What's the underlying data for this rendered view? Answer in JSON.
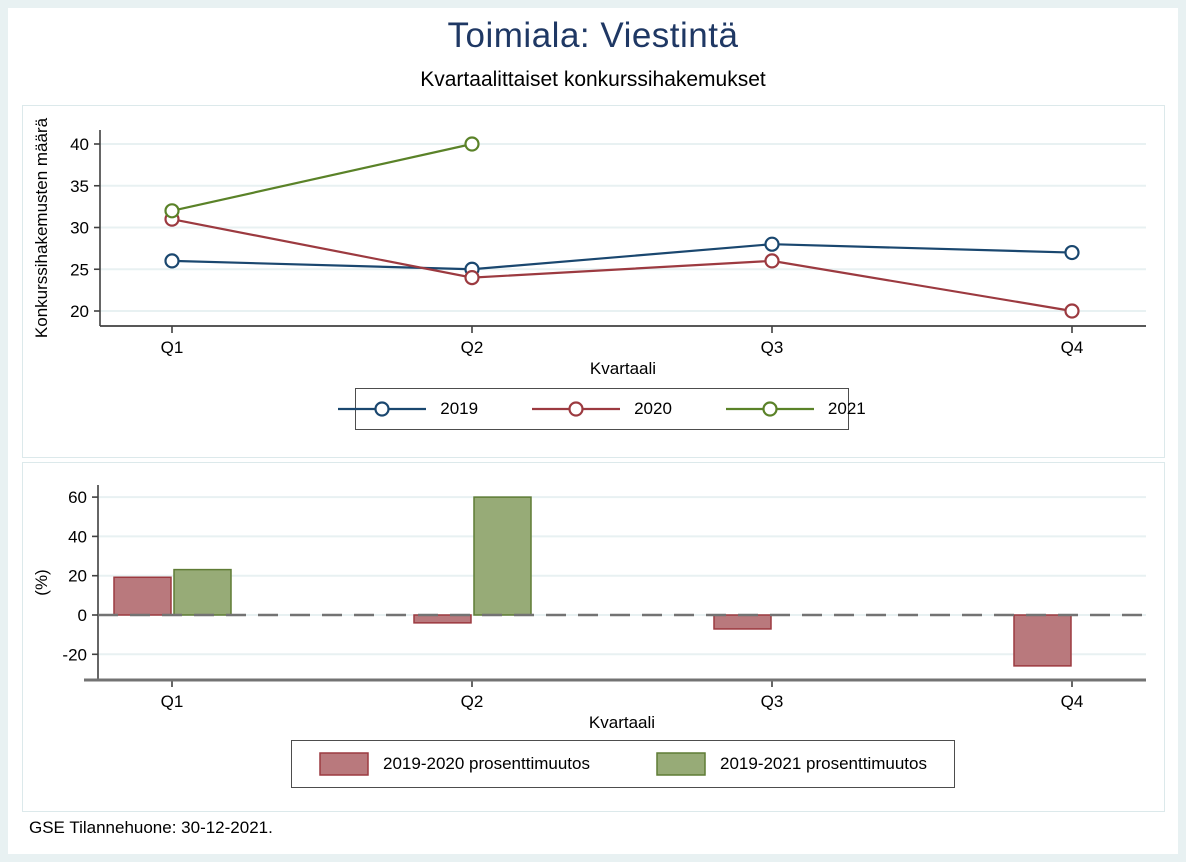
{
  "header": {
    "title": "Toimiala: Viestintä",
    "subtitle": "Kvartaalittaiset konkurssihakemukset"
  },
  "footer": {
    "note": "GSE Tilannehuone: 30-12-2021."
  },
  "colors": {
    "title_navy": "#1f3864",
    "frame_blue": "#e8f1f2",
    "gridline": "#e8f1f2",
    "axis_dark": "#404040",
    "axis_gray": "#737373",
    "series_2019": "#1a476f",
    "series_2020": "#9c3a40",
    "series_2021": "#5a8228",
    "bar_red_fill": "#b9797d",
    "bar_green_fill": "#97ab77"
  },
  "chart_data": [
    {
      "type": "line",
      "title": "Kvartaalittaiset konkurssihakemukset",
      "categories": [
        "Q1",
        "Q2",
        "Q3",
        "Q4"
      ],
      "series": [
        {
          "name": "2019",
          "color": "#1a476f",
          "values": [
            26,
            25,
            28,
            27
          ]
        },
        {
          "name": "2020",
          "color": "#9c3a40",
          "values": [
            31,
            24,
            26,
            20
          ]
        },
        {
          "name": "2021",
          "color": "#5a8228",
          "values": [
            32,
            40,
            null,
            null
          ]
        }
      ],
      "xlabel": "Kvartaali",
      "ylabel": "Konkurssihakemusten määrä",
      "yticks": [
        20,
        25,
        30,
        35,
        40
      ],
      "ylim": [
        17.8,
        42.2
      ],
      "grid": true,
      "legend_position": "bottom",
      "marker": "hollow-circle"
    },
    {
      "type": "bar",
      "categories": [
        "Q1",
        "Q2",
        "Q3",
        "Q4"
      ],
      "series": [
        {
          "name": "2019-2020 prosenttimuutos",
          "fill": "#b9797d",
          "stroke": "#9c3a40",
          "values": [
            19.2,
            -4.0,
            -7.1,
            -25.9
          ]
        },
        {
          "name": "2019-2021 prosenttimuutos",
          "fill": "#97ab77",
          "stroke": "#5f7c35",
          "values": [
            23.1,
            60.0,
            null,
            null
          ]
        }
      ],
      "xlabel": "Kvartaali",
      "ylabel": "(%)",
      "yticks": [
        -20,
        0,
        20,
        40,
        60
      ],
      "ylim": [
        -33,
        68
      ],
      "grid": true,
      "zero_line": "dashed",
      "legend_position": "bottom"
    }
  ]
}
